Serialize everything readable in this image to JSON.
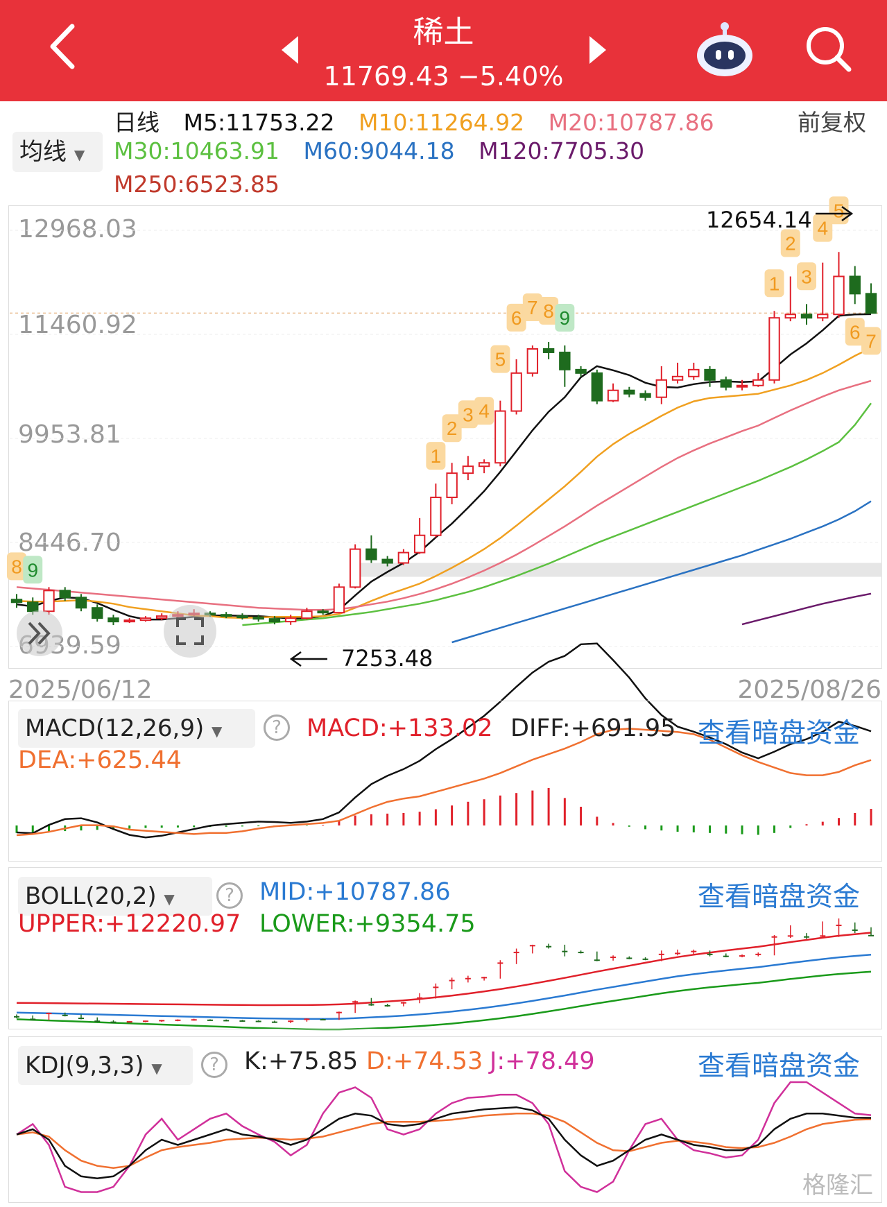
{
  "header": {
    "title": "稀土",
    "quote": "11769.43 −5.40%",
    "colors": {
      "bg": "#e8323a"
    },
    "icons": [
      "back-icon",
      "prev-arrow-icon",
      "next-arrow-icon",
      "robot-icon",
      "search-icon"
    ]
  },
  "ma_panel": {
    "period": "日线",
    "indicator_select": "均线",
    "adjust": "前复权",
    "ma5": "M5:11753.22",
    "ma10": "M10:11264.92",
    "ma20": "M20:10787.86",
    "ma30": "M30:10463.91",
    "ma60": "M60:9044.18",
    "ma120": "M120:7705.30",
    "ma250": "M250:6523.85",
    "colors": {
      "m5": "#111111",
      "m10": "#f0a020",
      "m20": "#e87080",
      "m30": "#5cc040",
      "m60": "#2a72c2",
      "m120": "#6a1a6a",
      "m250": "#c0392b"
    }
  },
  "main_chart": {
    "y_ticks": [
      "12968.03",
      "11460.92",
      "9953.81",
      "8446.70",
      "6939.59"
    ],
    "high_label": "12654.14",
    "low_label": "7253.48",
    "date_start": "2025/06/12",
    "date_end": "2025/08/26",
    "td_labels": [
      "8",
      "9",
      "1",
      "2",
      "3",
      "4",
      "5",
      "6",
      "7",
      "8",
      "9",
      "1",
      "2",
      "3",
      "4",
      "5",
      "6",
      "7"
    ]
  },
  "macd": {
    "select": "MACD(12,26,9)",
    "macd": "MACD:+133.02",
    "diff": "DIFF:+691.95",
    "dea": "DEA:+625.44",
    "link": "查看暗盘资金"
  },
  "boll": {
    "select": "BOLL(20,2)",
    "mid": "MID:+10787.86",
    "upper": "UPPER:+12220.97",
    "lower": "LOWER:+9354.75",
    "link": "查看暗盘资金"
  },
  "kdj": {
    "select": "KDJ(9,3,3)",
    "k": "K:+75.85",
    "d": "D:+74.53",
    "j": "J:+78.49",
    "link": "查看暗盘资金"
  },
  "watermark": "格隆汇",
  "chart_data": {
    "type": "candlestick",
    "ylim": [
      6939.59,
      12968.03
    ],
    "candles": [
      [
        7620,
        7580,
        7700,
        7500
      ],
      [
        7580,
        7450,
        7650,
        7400
      ],
      [
        7450,
        7750,
        7800,
        7400
      ],
      [
        7750,
        7650,
        7800,
        7600
      ],
      [
        7650,
        7500,
        7700,
        7450
      ],
      [
        7500,
        7350,
        7550,
        7300
      ],
      [
        7350,
        7300,
        7400,
        7250
      ],
      [
        7300,
        7320,
        7350,
        7280
      ],
      [
        7320,
        7350,
        7380,
        7300
      ],
      [
        7350,
        7380,
        7420,
        7320
      ],
      [
        7380,
        7400,
        7450,
        7350
      ],
      [
        7400,
        7420,
        7480,
        7380
      ],
      [
        7420,
        7400,
        7450,
        7370
      ],
      [
        7400,
        7380,
        7440,
        7350
      ],
      [
        7380,
        7360,
        7420,
        7330
      ],
      [
        7360,
        7340,
        7400,
        7300
      ],
      [
        7340,
        7300,
        7380,
        7260
      ],
      [
        7300,
        7350,
        7400,
        7253
      ],
      [
        7350,
        7450,
        7500,
        7330
      ],
      [
        7450,
        7430,
        7480,
        7400
      ],
      [
        7430,
        7800,
        7850,
        7420
      ],
      [
        7800,
        8350,
        8420,
        7780
      ],
      [
        8350,
        8200,
        8550,
        8150
      ],
      [
        8200,
        8150,
        8250,
        8100
      ],
      [
        8150,
        8300,
        8350,
        8120
      ],
      [
        8300,
        8550,
        8800,
        8280
      ],
      [
        8550,
        9100,
        9300,
        8520
      ],
      [
        9100,
        9450,
        9600,
        9000
      ],
      [
        9450,
        9550,
        9700,
        9350
      ],
      [
        9550,
        9600,
        9650,
        9450
      ],
      [
        9600,
        10350,
        10500,
        9550
      ],
      [
        10350,
        10900,
        11100,
        10300
      ],
      [
        10900,
        11250,
        11300,
        10850
      ],
      [
        11250,
        11200,
        11350,
        11100
      ],
      [
        11200,
        10950,
        11300,
        10700
      ],
      [
        10950,
        10900,
        11000,
        10850
      ],
      [
        10900,
        10500,
        10950,
        10450
      ],
      [
        10500,
        10650,
        10750,
        10480
      ],
      [
        10650,
        10600,
        10700,
        10550
      ],
      [
        10600,
        10550,
        10650,
        10500
      ],
      [
        10550,
        10800,
        11000,
        10450
      ],
      [
        10800,
        10850,
        11050,
        10750
      ],
      [
        10850,
        10950,
        11050,
        10800
      ],
      [
        10950,
        10800,
        11000,
        10700
      ],
      [
        10800,
        10700,
        10850,
        10650
      ],
      [
        10700,
        10720,
        10800,
        10650
      ],
      [
        10720,
        10800,
        10900,
        10700
      ],
      [
        10800,
        11700,
        11800,
        10750
      ],
      [
        11700,
        11750,
        12300,
        11650
      ],
      [
        11750,
        11700,
        11900,
        11600
      ],
      [
        11700,
        11750,
        12500,
        11650
      ],
      [
        11750,
        12300,
        12654,
        11700
      ],
      [
        12300,
        12050,
        12450,
        11900
      ],
      [
        12050,
        11769,
        12200,
        11769
      ]
    ],
    "series": [
      {
        "name": "M5",
        "values": [
          7550,
          7520,
          7600,
          7650,
          7640,
          7570,
          7470,
          7380,
          7330,
          7330,
          7350,
          7370,
          7390,
          7390,
          7385,
          7380,
          7365,
          7345,
          7350,
          7380,
          7470,
          7680,
          7880,
          8020,
          8150,
          8310,
          8520,
          8720,
          8950,
          9190,
          9470,
          9770,
          10070,
          10340,
          10550,
          10840,
          11000,
          10940,
          10870,
          10760,
          10700,
          10690,
          10740,
          10770,
          10780,
          10770,
          10780,
          10970,
          11170,
          11330,
          11520,
          11730,
          11750,
          11753
        ]
      },
      {
        "name": "M10",
        "values": [
          7600,
          7590,
          7590,
          7600,
          7610,
          7590,
          7560,
          7510,
          7480,
          7450,
          7420,
          7390,
          7380,
          7360,
          7355,
          7360,
          7370,
          7370,
          7370,
          7380,
          7410,
          7500,
          7600,
          7690,
          7770,
          7850,
          7960,
          8080,
          8210,
          8350,
          8510,
          8690,
          8880,
          9070,
          9260,
          9470,
          9690,
          9870,
          10020,
          10150,
          10280,
          10400,
          10490,
          10540,
          10560,
          10580,
          10600,
          10660,
          10720,
          10800,
          10900,
          11020,
          11150,
          11265
        ]
      },
      {
        "name": "M20",
        "values": [
          7800,
          7780,
          7760,
          7740,
          7720,
          7700,
          7680,
          7660,
          7640,
          7620,
          7600,
          7580,
          7560,
          7540,
          7520,
          7500,
          7490,
          7480,
          7470,
          7470,
          7480,
          7510,
          7550,
          7590,
          7640,
          7700,
          7770,
          7850,
          7940,
          8040,
          8150,
          8270,
          8400,
          8540,
          8680,
          8830,
          8980,
          9120,
          9260,
          9400,
          9540,
          9670,
          9780,
          9880,
          9970,
          10060,
          10140,
          10250,
          10360,
          10460,
          10560,
          10650,
          10720,
          10788
        ]
      },
      {
        "name": "M30",
        "values": [
          null,
          null,
          null,
          null,
          null,
          null,
          null,
          null,
          null,
          null,
          null,
          null,
          null,
          null,
          7250,
          7270,
          7290,
          7310,
          7330,
          7350,
          7380,
          7410,
          7440,
          7480,
          7520,
          7560,
          7610,
          7670,
          7730,
          7800,
          7880,
          7960,
          8050,
          8140,
          8240,
          8340,
          8440,
          8530,
          8620,
          8710,
          8800,
          8890,
          8980,
          9070,
          9160,
          9250,
          9340,
          9440,
          9540,
          9650,
          9770,
          9900,
          10150,
          10464
        ]
      },
      {
        "name": "M60",
        "values": [
          null,
          null,
          null,
          null,
          null,
          null,
          null,
          null,
          null,
          null,
          null,
          null,
          null,
          null,
          null,
          null,
          null,
          null,
          null,
          null,
          null,
          null,
          null,
          null,
          null,
          null,
          null,
          7000,
          7070,
          7140,
          7210,
          7280,
          7350,
          7420,
          7490,
          7560,
          7630,
          7700,
          7770,
          7840,
          7910,
          7980,
          8050,
          8120,
          8190,
          8260,
          8340,
          8420,
          8500,
          8590,
          8680,
          8780,
          8900,
          9044
        ]
      },
      {
        "name": "M120",
        "values": [
          null,
          null,
          null,
          null,
          null,
          null,
          null,
          null,
          null,
          null,
          null,
          null,
          null,
          null,
          null,
          null,
          null,
          null,
          null,
          null,
          null,
          null,
          null,
          null,
          null,
          null,
          null,
          null,
          null,
          null,
          null,
          null,
          null,
          null,
          null,
          null,
          null,
          null,
          null,
          null,
          null,
          null,
          null,
          null,
          null,
          7260,
          7320,
          7380,
          7440,
          7500,
          7560,
          7610,
          7660,
          7705
        ]
      }
    ],
    "macd_hist": [
      -60,
      -55,
      -50,
      -45,
      -40,
      -35,
      -30,
      -25,
      -20,
      -18,
      -16,
      -14,
      -12,
      -10,
      -8,
      -6,
      -5,
      -4,
      -3,
      5,
      40,
      80,
      90,
      95,
      100,
      110,
      130,
      160,
      190,
      210,
      240,
      260,
      280,
      300,
      220,
      150,
      70,
      20,
      -10,
      -30,
      -40,
      -50,
      -55,
      -60,
      -65,
      -70,
      -75,
      -60,
      -20,
      10,
      30,
      60,
      100,
      133
    ],
    "kdj": {
      "k": [
        60,
        65,
        55,
        30,
        20,
        18,
        20,
        30,
        45,
        55,
        50,
        55,
        60,
        65,
        60,
        58,
        55,
        50,
        55,
        65,
        75,
        80,
        78,
        70,
        68,
        70,
        75,
        80,
        82,
        84,
        85,
        86,
        83,
        75,
        55,
        40,
        30,
        35,
        45,
        55,
        60,
        55,
        50,
        48,
        45,
        45,
        50,
        65,
        75,
        80,
        80,
        78,
        76,
        75.85
      ],
      "d": [
        60,
        62,
        58,
        45,
        35,
        30,
        28,
        30,
        38,
        45,
        48,
        50,
        52,
        55,
        56,
        57,
        56,
        55,
        56,
        58,
        62,
        66,
        70,
        72,
        72,
        72,
        73,
        74,
        76,
        78,
        79,
        80,
        80,
        78,
        72,
        62,
        52,
        45,
        44,
        48,
        52,
        54,
        53,
        51,
        48,
        47,
        48,
        52,
        58,
        65,
        70,
        72,
        74,
        74.53
      ],
      "j": [
        60,
        70,
        50,
        10,
        5,
        5,
        10,
        30,
        60,
        75,
        55,
        65,
        75,
        80,
        68,
        60,
        53,
        40,
        50,
        80,
        100,
        105,
        95,
        65,
        60,
        65,
        80,
        90,
        95,
        96,
        98,
        98,
        90,
        70,
        25,
        10,
        5,
        15,
        45,
        70,
        75,
        55,
        45,
        42,
        38,
        40,
        55,
        90,
        110,
        110,
        100,
        90,
        80,
        78.49
      ]
    }
  }
}
